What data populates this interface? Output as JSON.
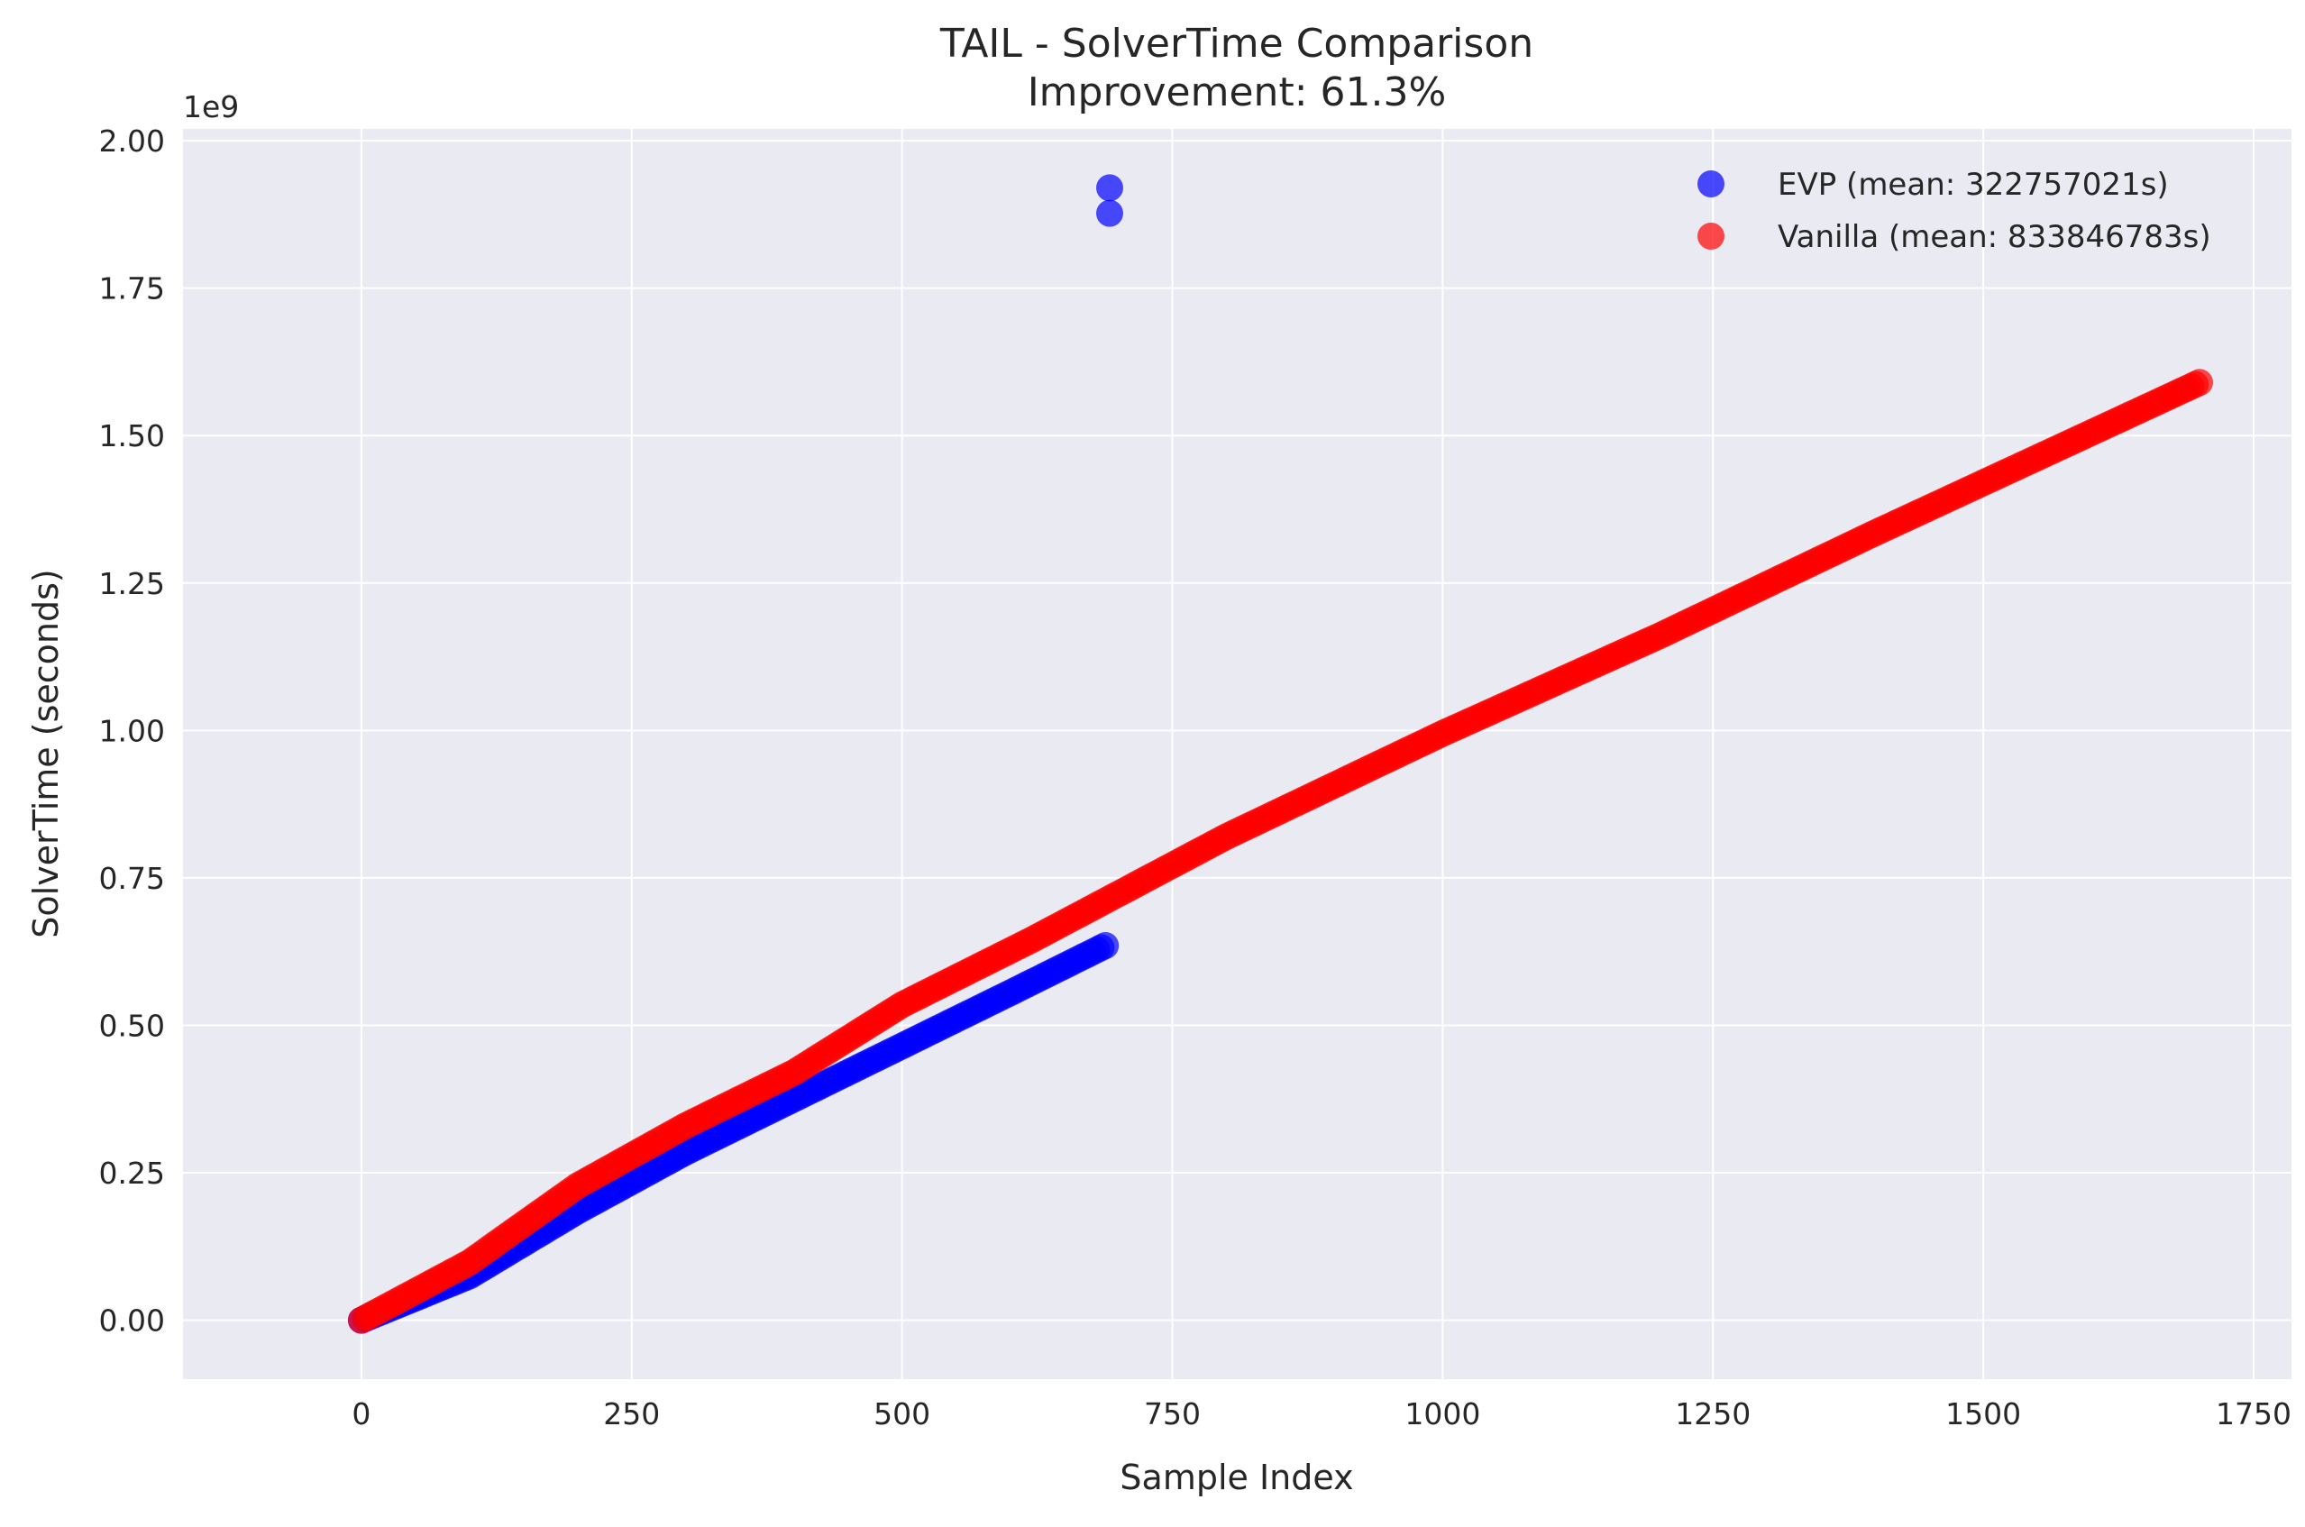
{
  "chart_data": {
    "type": "scatter",
    "title": "TAIL - SolverTime Comparison",
    "subtitle": "Improvement: 61.3%",
    "xlabel": "Sample Index",
    "ylabel": "SolverTime (seconds)",
    "y_offset_label": "1e9",
    "xlim": [
      -165,
      1785
    ],
    "ylim": [
      -0.1,
      2.02
    ],
    "x_ticks": [
      0,
      250,
      500,
      750,
      1000,
      1250,
      1500,
      1750
    ],
    "x_tick_labels": [
      "0",
      "250",
      "500",
      "750",
      "1000",
      "1250",
      "1500",
      "1750"
    ],
    "y_ticks": [
      0.0,
      0.25,
      0.5,
      0.75,
      1.0,
      1.25,
      1.5,
      1.75,
      2.0
    ],
    "y_tick_labels": [
      "0.00",
      "0.25",
      "0.50",
      "0.75",
      "1.00",
      "1.25",
      "1.50",
      "1.75",
      "2.00"
    ],
    "grid": true,
    "legend_position": "top-right",
    "series": [
      {
        "name": "EVP (mean: 322757021s)",
        "color": "#0000ff",
        "trend": [
          [
            0,
            0.0
          ],
          [
            100,
            0.075
          ],
          [
            200,
            0.185
          ],
          [
            300,
            0.285
          ],
          [
            400,
            0.375
          ],
          [
            500,
            0.465
          ],
          [
            600,
            0.555
          ],
          [
            690,
            0.637
          ]
        ],
        "points_end": 690,
        "outliers": [
          [
            692,
            1.92
          ],
          [
            692,
            1.877
          ]
        ]
      },
      {
        "name": "Vanilla (mean: 833846783s)",
        "color": "#ff0000",
        "trend": [
          [
            0,
            0.0
          ],
          [
            100,
            0.098
          ],
          [
            200,
            0.228
          ],
          [
            300,
            0.33
          ],
          [
            400,
            0.42
          ],
          [
            500,
            0.535
          ],
          [
            620,
            0.645
          ],
          [
            800,
            0.82
          ],
          [
            1000,
            0.995
          ],
          [
            1200,
            1.16
          ],
          [
            1400,
            1.335
          ],
          [
            1700,
            1.59
          ]
        ],
        "points_end": 1700,
        "outliers": []
      }
    ]
  }
}
